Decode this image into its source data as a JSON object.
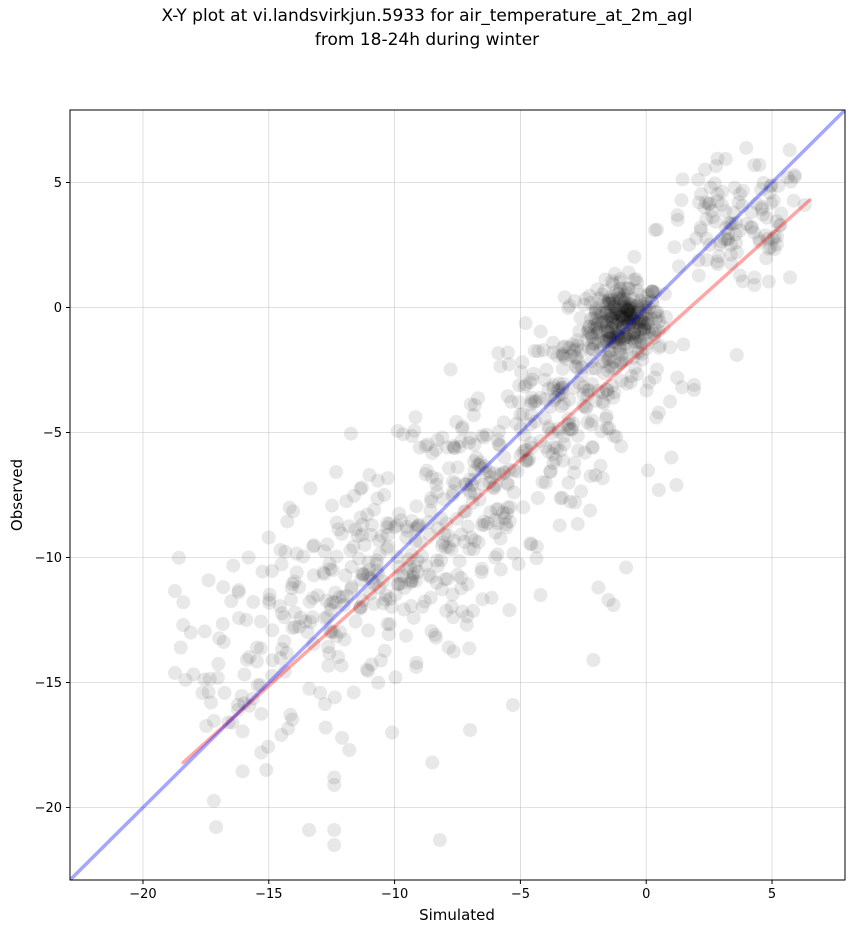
{
  "chart_data": {
    "type": "scatter",
    "title_lines": [
      "X-Y plot at vi.landsvirkjun.5933 for air_temperature_at_2m_agl",
      "from 18-24h during winter"
    ],
    "xlabel": "Simulated",
    "ylabel": "Observed",
    "xlim": [
      -22.9,
      7.9
    ],
    "ylim": [
      -22.9,
      7.9
    ],
    "xticks": [
      -20,
      -15,
      -10,
      -5,
      0,
      5
    ],
    "yticks": [
      -20,
      -15,
      -10,
      -5,
      0,
      5
    ],
    "xtick_labels": [
      "−20",
      "−15",
      "−10",
      "−5",
      "0",
      "5"
    ],
    "ytick_labels": [
      "−20",
      "−15",
      "−10",
      "−5",
      "0",
      "5"
    ],
    "grid": true,
    "point_color": "#000000",
    "identity_line": {
      "color": "#0000ff",
      "x": [
        -22.9,
        7.9
      ],
      "y": [
        -22.9,
        7.9
      ]
    },
    "fit_line": {
      "color": "#ff0000",
      "x": [
        -18.4,
        6.5
      ],
      "y": [
        -18.2,
        4.3
      ]
    },
    "clusters": [
      {
        "x": -0.8,
        "y": -0.4,
        "sx": 0.7,
        "sy": 0.7,
        "n": 180
      },
      {
        "x": -1.3,
        "y": -1.2,
        "sx": 1.0,
        "sy": 1.0,
        "n": 150
      },
      {
        "x": 3.5,
        "y": 3.2,
        "sx": 1.5,
        "sy": 1.3,
        "n": 110
      },
      {
        "x": -3.5,
        "y": -4.0,
        "sx": 1.5,
        "sy": 1.5,
        "n": 150
      },
      {
        "x": -6.5,
        "y": -7.0,
        "sx": 2.0,
        "sy": 1.8,
        "n": 140
      },
      {
        "x": -10.0,
        "y": -10.5,
        "sx": 2.0,
        "sy": 1.7,
        "n": 160
      },
      {
        "x": -13.0,
        "y": -12.5,
        "sx": 1.8,
        "sy": 1.8,
        "n": 100
      },
      {
        "x": -16.5,
        "y": -14.5,
        "sx": 1.3,
        "sy": 2.0,
        "n": 45
      }
    ],
    "points": [
      {
        "x": -11,
        "y": -6.7
      },
      {
        "x": -11.3,
        "y": -7.2
      },
      {
        "x": -12.3,
        "y": -8.6
      },
      {
        "x": -15,
        "y": -9.2
      },
      {
        "x": -15.8,
        "y": -10.0
      },
      {
        "x": -18.4,
        "y": -12.7
      },
      {
        "x": -18.5,
        "y": -13.6
      },
      {
        "x": -18.1,
        "y": -13.0
      },
      {
        "x": -17.3,
        "y": -15.8
      },
      {
        "x": -16.6,
        "y": -16.6
      },
      {
        "x": -15.3,
        "y": -17.8
      },
      {
        "x": -15.1,
        "y": -18.5
      },
      {
        "x": -13.4,
        "y": -20.9
      },
      {
        "x": -12.4,
        "y": -20.9
      },
      {
        "x": -12.4,
        "y": -21.5
      },
      {
        "x": -8.2,
        "y": -21.3
      },
      {
        "x": -8.5,
        "y": -18.2
      },
      {
        "x": -12.4,
        "y": -19.1
      },
      {
        "x": -12.4,
        "y": -18.8
      },
      {
        "x": -11.8,
        "y": -17.7
      },
      {
        "x": -14.5,
        "y": -17.1
      },
      {
        "x": -7.0,
        "y": -16.9
      },
      {
        "x": -5.3,
        "y": -15.9
      },
      {
        "x": -10.1,
        "y": -17.0
      },
      {
        "x": -6.0,
        "y": -10.0
      },
      {
        "x": -4.2,
        "y": -11.5
      },
      {
        "x": -2.1,
        "y": -14.1
      },
      {
        "x": -1.9,
        "y": -11.2
      },
      {
        "x": -0.8,
        "y": -10.4
      },
      {
        "x": -1.5,
        "y": -11.7
      },
      {
        "x": -1.3,
        "y": -11.9
      },
      {
        "x": 1.2,
        "y": -7.1
      },
      {
        "x": 0.5,
        "y": -7.3
      },
      {
        "x": 1.0,
        "y": -6.0
      },
      {
        "x": 0.4,
        "y": -4.4
      },
      {
        "x": 0.5,
        "y": -4.2
      },
      {
        "x": 1.9,
        "y": -3.3
      },
      {
        "x": 1.9,
        "y": -3.1
      },
      {
        "x": 3.6,
        "y": -1.9
      },
      {
        "x": 4.3,
        "y": 0.9
      },
      {
        "x": 4.3,
        "y": 1.2
      },
      {
        "x": 6.3,
        "y": 4.1
      },
      {
        "x": 5.9,
        "y": 5.3
      },
      {
        "x": 5.7,
        "y": 6.3
      },
      {
        "x": 4.3,
        "y": 5.7
      },
      {
        "x": 4.5,
        "y": 5.7
      },
      {
        "x": 2.1,
        "y": 4.2
      },
      {
        "x": -5.5,
        "y": -1.8
      },
      {
        "x": -3.7,
        "y": -1.8
      },
      {
        "x": -0.7,
        "y": 1.4
      },
      {
        "x": -2.3,
        "y": -0.9
      },
      {
        "x": -9.0,
        "y": -5.6
      },
      {
        "x": -8.1,
        "y": -5.2
      },
      {
        "x": -7.9,
        "y": -5.6
      }
    ]
  }
}
